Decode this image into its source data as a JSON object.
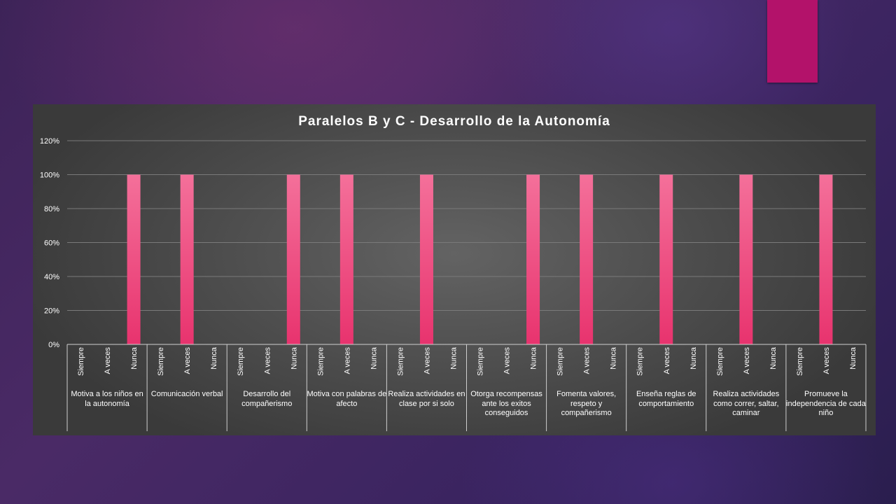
{
  "colors": {
    "accent_tab": "#b3126a",
    "bar": "#e8336e",
    "bar_light": "#f4709a",
    "chart_bg": "#4f4f4f",
    "text": "#ffffff"
  },
  "chart_data": {
    "type": "bar",
    "title": "Paralelos  B y C - Desarrollo  de la Autonomía",
    "xlabel": "",
    "ylabel": "",
    "ylim": [
      0,
      1.2
    ],
    "y_ticks": [
      "0%",
      "20%",
      "40%",
      "60%",
      "80%",
      "100%",
      "120%"
    ],
    "y_tick_values": [
      0,
      0.2,
      0.4,
      0.6,
      0.8,
      1.0,
      1.2
    ],
    "grid": true,
    "legend": "none",
    "sub_categories": [
      "Siempre",
      "A veces",
      "Nunca"
    ],
    "groups": [
      {
        "label": "Motiva a los niños en la autonomía",
        "values": [
          0,
          0,
          1.0
        ]
      },
      {
        "label": "Comunicación verbal",
        "values": [
          0,
          1.0,
          0
        ]
      },
      {
        "label": "Desarrollo del compañerismo",
        "values": [
          0,
          0,
          1.0
        ]
      },
      {
        "label": "Motiva con palabras de afecto",
        "values": [
          0,
          1.0,
          0
        ]
      },
      {
        "label": "Realiza actividades en clase por si solo",
        "values": [
          0,
          1.0,
          0
        ]
      },
      {
        "label": "Otorga recompensas ante los exitos conseguidos",
        "values": [
          0,
          0,
          1.0
        ]
      },
      {
        "label": "Fomenta valores, respeto y compañerismo",
        "values": [
          0,
          1.0,
          0
        ]
      },
      {
        "label": "Enseña reglas de comportamiento",
        "values": [
          0,
          1.0,
          0
        ]
      },
      {
        "label": "Realiza actividades como correr, saltar, caminar",
        "values": [
          0,
          1.0,
          0
        ]
      },
      {
        "label": "Promueve la independencia de cada niño",
        "values": [
          0,
          1.0,
          0
        ]
      }
    ]
  }
}
